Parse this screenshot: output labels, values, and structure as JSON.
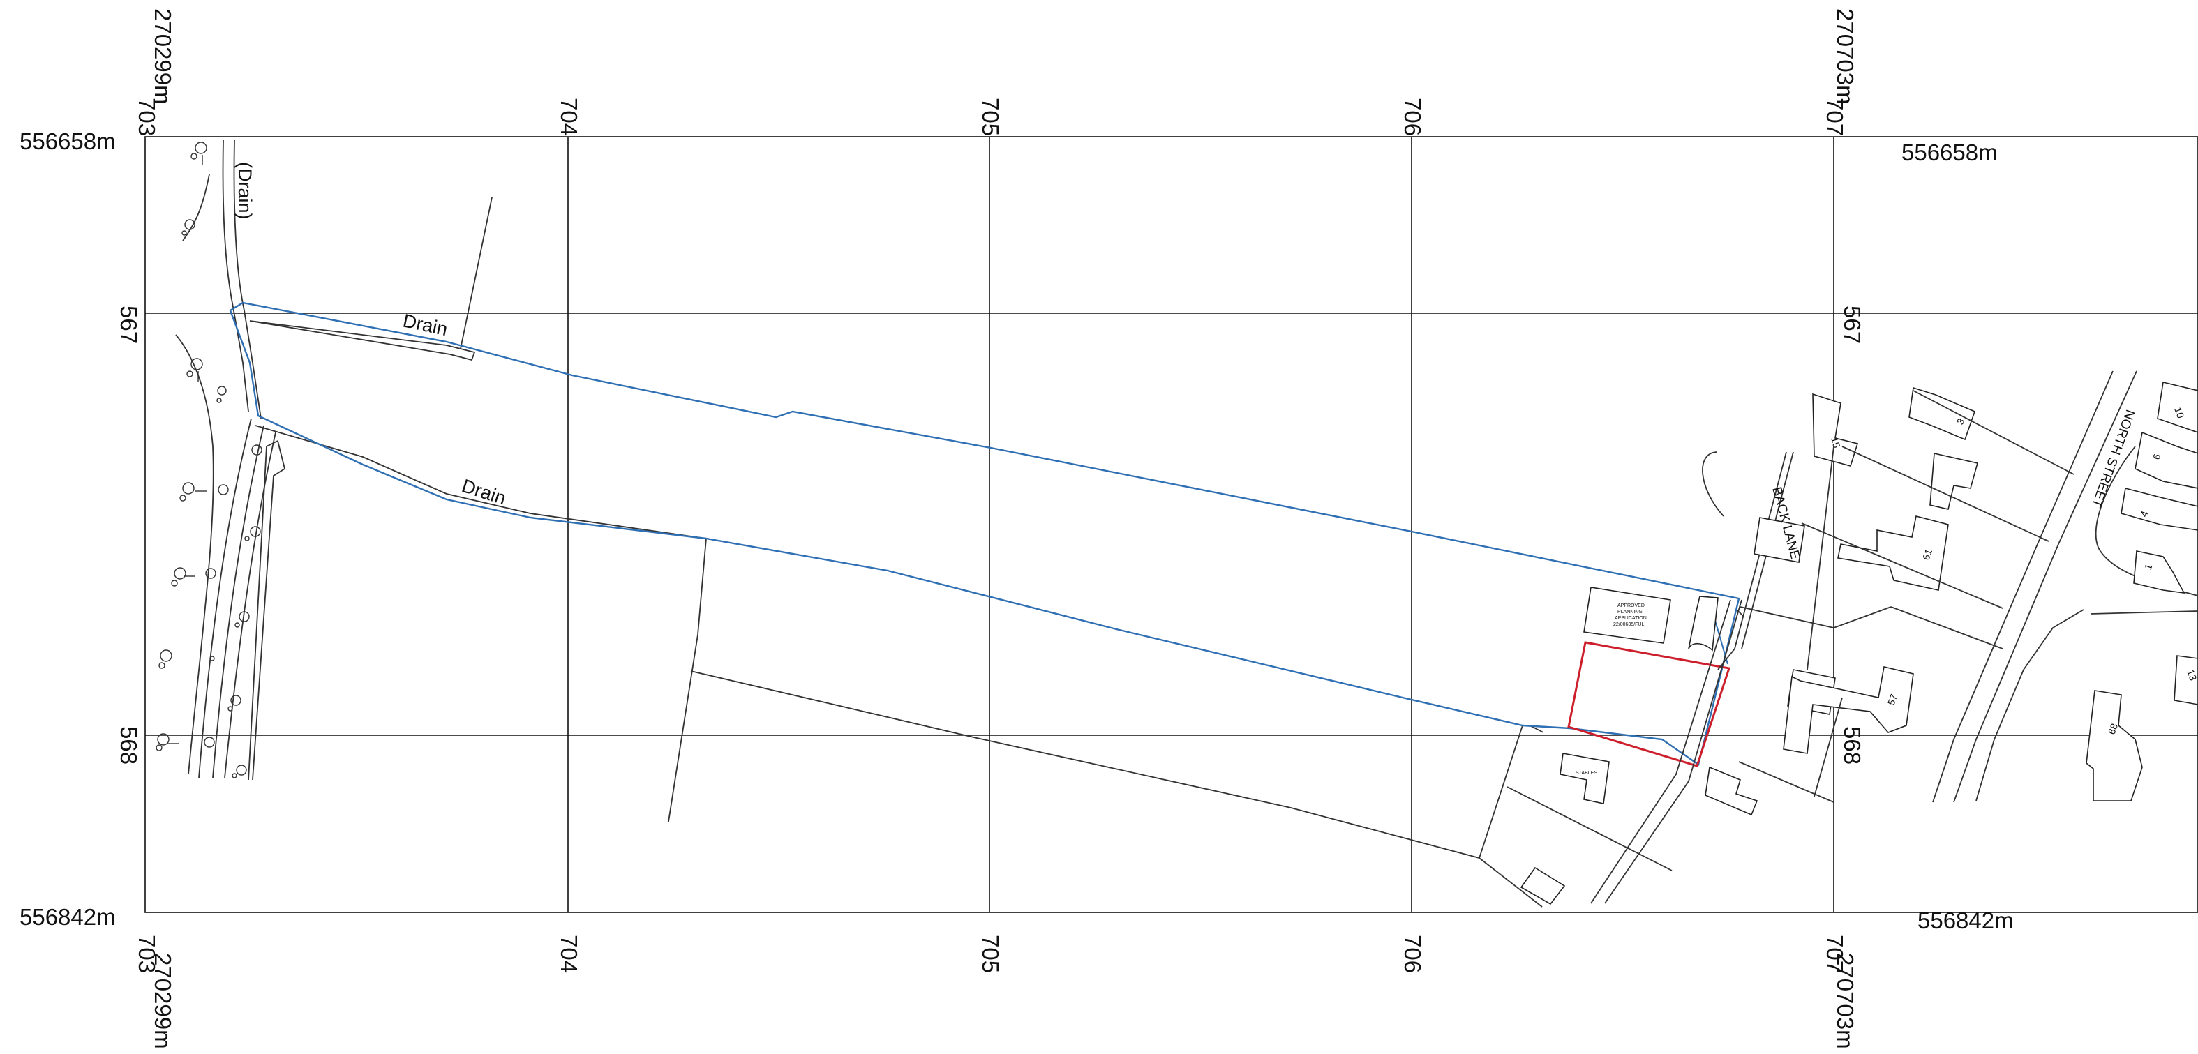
{
  "map": {
    "grid_x_labels": [
      "703",
      "704",
      "705",
      "706",
      "707"
    ],
    "grid_y_labels": [
      "567",
      "568"
    ],
    "corner_eastings": [
      "270299m",
      "270703m"
    ],
    "corner_northings": [
      "556658m",
      "556842m"
    ],
    "feature_labels": {
      "drain_vertical": "(Drain)",
      "drain_upper": "Drain",
      "drain_lower": "Drain",
      "back_lane": "BACK LANE",
      "north_street": "NORTH STREET",
      "stables": "STABLES",
      "approved_planning": [
        "APPROVED",
        "PLANNING",
        "APPLICATION",
        "22/00635/FUL"
      ]
    },
    "house_numbers": [
      "3",
      "10",
      "6",
      "4",
      "1",
      "15",
      "61",
      "57",
      "68",
      "13"
    ],
    "colors": {
      "site_boundary_blue": "#2f6fb3",
      "red_plot": "#cc1f2b",
      "map_lines": "#333333",
      "background": "#ffffff"
    }
  }
}
